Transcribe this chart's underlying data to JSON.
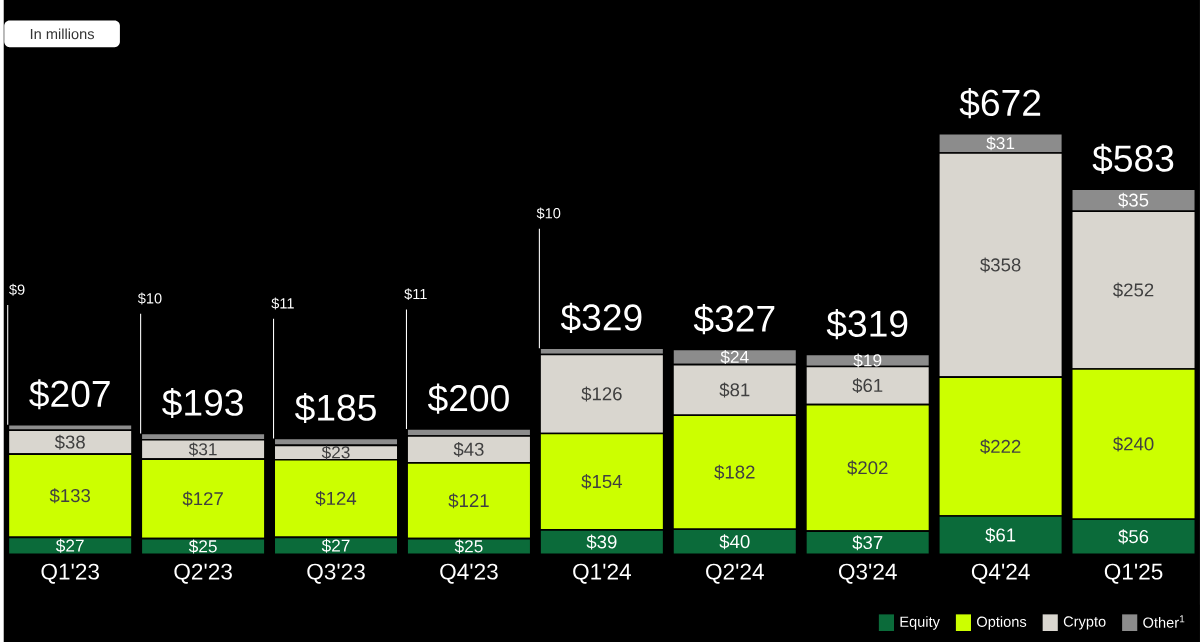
{
  "chart_data": {
    "type": "bar",
    "stacked": true,
    "categories": [
      "Q1'23",
      "Q2'23",
      "Q3'23",
      "Q4'23",
      "Q1'24",
      "Q2'24",
      "Q3'24",
      "Q4'24",
      "Q1'25"
    ],
    "series": [
      {
        "name": "Equity",
        "color": "#0b6b3a",
        "values": [
          27,
          25,
          27,
          25,
          39,
          40,
          37,
          61,
          56
        ],
        "value_labels": [
          "$27",
          "$25",
          "$27",
          "$25",
          "$39",
          "$40",
          "$37",
          "$61",
          "$56"
        ]
      },
      {
        "name": "Options",
        "color": "#ccff00",
        "values": [
          133,
          127,
          124,
          121,
          154,
          182,
          202,
          222,
          240
        ],
        "value_labels": [
          "$133",
          "$127",
          "$124",
          "$121",
          "$154",
          "$182",
          "$202",
          "$222",
          "$240"
        ]
      },
      {
        "name": "Crypto",
        "color": "#d9d6cf",
        "values": [
          38,
          31,
          23,
          43,
          126,
          81,
          61,
          358,
          252
        ],
        "value_labels": [
          "$38",
          "$31",
          "$23",
          "$43",
          "$126",
          "$81",
          "$61",
          "$358",
          "$252"
        ]
      },
      {
        "name": "Other$^{1}$",
        "color": "#8c8c8c",
        "values": [
          9,
          10,
          11,
          11,
          10,
          24,
          19,
          31,
          35
        ],
        "value_labels": [
          "$9",
          "$10",
          "$11",
          "$11",
          "$10",
          "$24",
          "$19",
          "$31",
          "$35"
        ]
      }
    ],
    "totals": [
      "$207",
      "$193",
      "$185",
      "$200",
      "$329",
      "$327",
      "$319",
      "$672",
      "$583"
    ],
    "annotations": [
      "In millions"
    ],
    "legend": "bottom right"
  }
}
